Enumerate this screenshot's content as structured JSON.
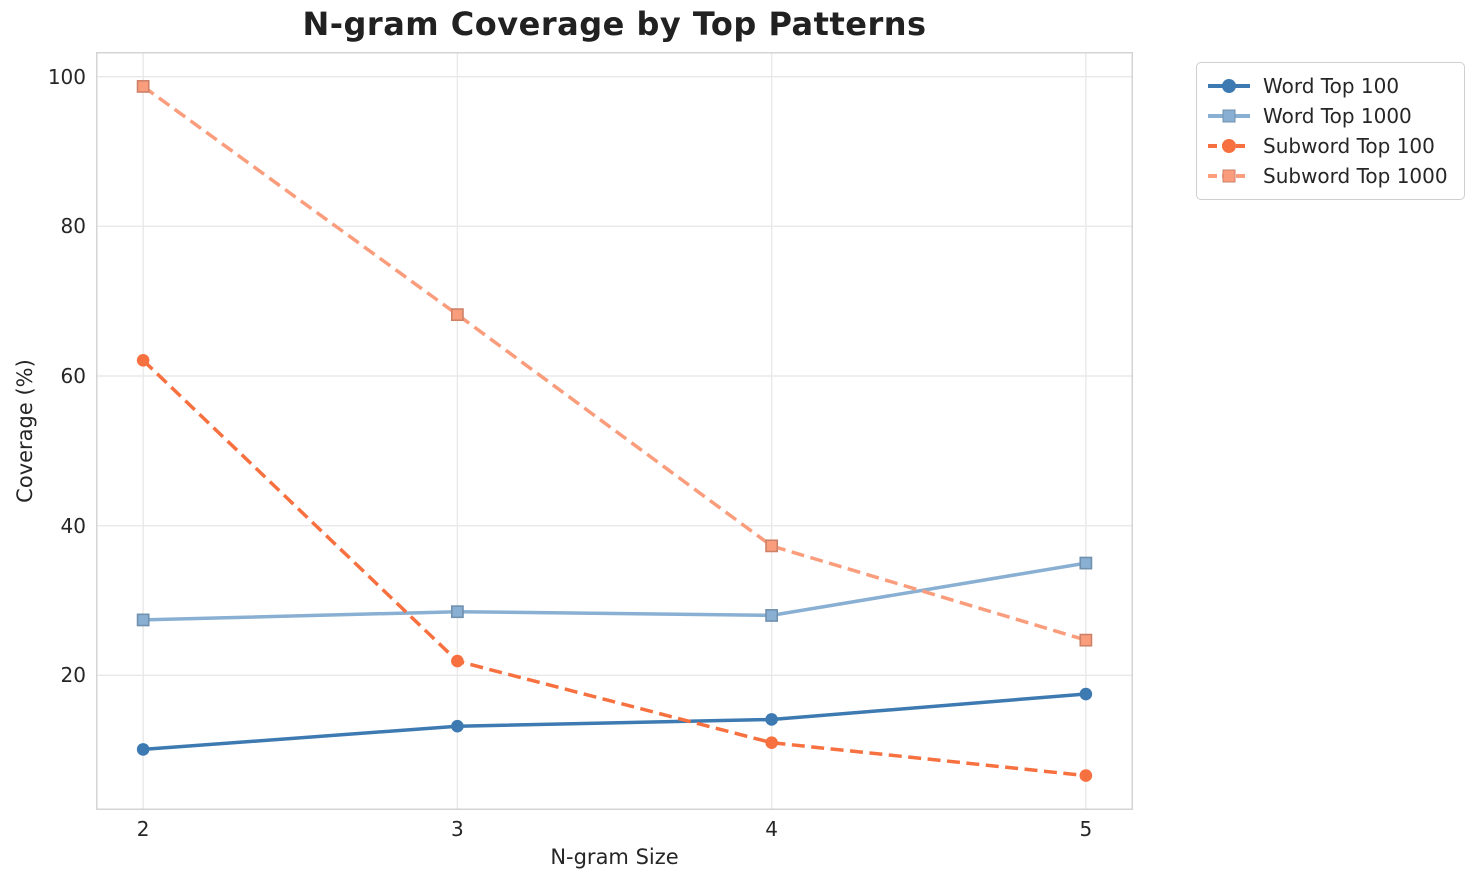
{
  "chart_data": {
    "type": "line",
    "title": "N-gram Coverage by Top Patterns",
    "xlabel": "N-gram Size",
    "ylabel": "Coverage (%)",
    "x": [
      2,
      3,
      4,
      5
    ],
    "xticks": [
      "2",
      "3",
      "4",
      "5"
    ],
    "yticks": [
      "20",
      "40",
      "60",
      "80",
      "100"
    ],
    "ytick_values": [
      20,
      40,
      60,
      80,
      100
    ],
    "xlim": [
      1.85,
      5.15
    ],
    "ylim": [
      2.0,
      103.3
    ],
    "grid": true,
    "legend_position": "outside-top-right",
    "series": [
      {
        "name": "Word Top 100",
        "values": [
          10.1,
          13.2,
          14.1,
          17.5
        ],
        "color": "#3d7ab2",
        "line_style": "solid",
        "marker": "circle"
      },
      {
        "name": "Word Top 1000",
        "values": [
          27.4,
          28.5,
          28.0,
          35.0
        ],
        "color": "#89b0d3",
        "line_style": "solid",
        "marker": "square"
      },
      {
        "name": "Subword Top 100",
        "values": [
          62.1,
          21.9,
          11.0,
          6.6
        ],
        "color": "#f7703f",
        "line_style": "dashed",
        "marker": "circle"
      },
      {
        "name": "Subword Top 1000",
        "values": [
          98.7,
          68.2,
          37.3,
          24.7
        ],
        "color": "#fa9d7d",
        "line_style": "dashed",
        "marker": "square"
      }
    ],
    "colors": {
      "text": "#262626",
      "title": "#212121",
      "grid": "#e9e9e9",
      "spine": "#d4d4d4",
      "background": "#ffffff",
      "legend_border": "#cfcfcf"
    }
  }
}
